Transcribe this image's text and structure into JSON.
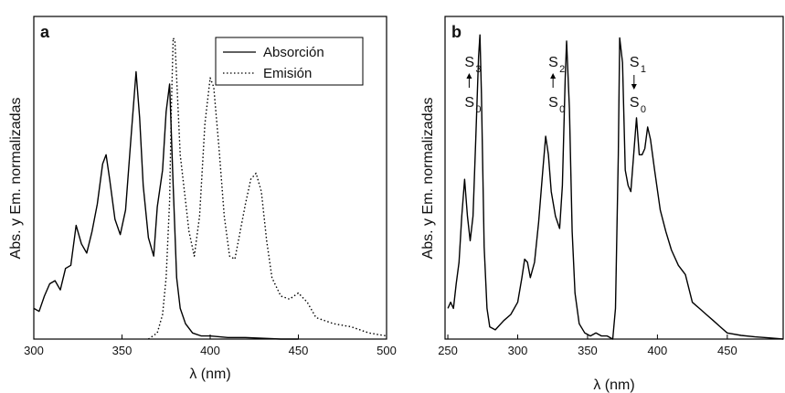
{
  "chart_data": [
    {
      "type": "line",
      "panel": "a",
      "xlabel": "λ (nm)",
      "ylabel": "Abs. y Em. normalizadas",
      "xlim": [
        300,
        500
      ],
      "xticks": [
        300,
        350,
        400,
        450,
        500
      ],
      "ylim": [
        0,
        1.05
      ],
      "grid": false,
      "legend_position": "top-right",
      "series": [
        {
          "name": "Absorción",
          "style": "solid",
          "x": [
            300,
            303,
            306,
            309,
            312,
            315,
            318,
            321,
            324,
            327,
            330,
            333,
            336,
            339,
            341,
            343,
            346,
            349,
            352,
            355,
            358,
            360,
            362,
            365,
            368,
            370,
            373,
            375,
            377,
            379,
            381,
            383,
            386,
            390,
            395,
            400,
            410,
            420,
            440,
            450
          ],
          "y": [
            0.1,
            0.09,
            0.14,
            0.18,
            0.19,
            0.16,
            0.23,
            0.24,
            0.37,
            0.31,
            0.28,
            0.35,
            0.44,
            0.57,
            0.6,
            0.52,
            0.39,
            0.34,
            0.42,
            0.65,
            0.87,
            0.72,
            0.5,
            0.33,
            0.27,
            0.43,
            0.55,
            0.74,
            0.83,
            0.5,
            0.2,
            0.1,
            0.05,
            0.02,
            0.01,
            0.01,
            0.005,
            0.005,
            0.0,
            0.0
          ]
        },
        {
          "name": "Emisión",
          "style": "dotted",
          "x": [
            365,
            370,
            373,
            375,
            377,
            378,
            379,
            380,
            381,
            383,
            386,
            388,
            391,
            394,
            397,
            400,
            402,
            405,
            408,
            411,
            414,
            417,
            420,
            423,
            426,
            429,
            432,
            435,
            440,
            445,
            450,
            455,
            460,
            470,
            480,
            490,
            500
          ],
          "y": [
            0.0,
            0.02,
            0.08,
            0.2,
            0.45,
            0.75,
            0.98,
            0.97,
            0.85,
            0.6,
            0.45,
            0.35,
            0.27,
            0.4,
            0.7,
            0.85,
            0.82,
            0.62,
            0.4,
            0.27,
            0.26,
            0.35,
            0.44,
            0.52,
            0.54,
            0.48,
            0.32,
            0.2,
            0.14,
            0.13,
            0.15,
            0.12,
            0.07,
            0.05,
            0.04,
            0.02,
            0.01
          ]
        }
      ]
    },
    {
      "type": "line",
      "panel": "b",
      "xlabel": "λ (nm)",
      "ylabel": "Abs. y Em. normalizadas",
      "xlim": [
        248,
        490
      ],
      "xticks": [
        250,
        300,
        350,
        400,
        450
      ],
      "ylim": [
        0,
        1.05
      ],
      "grid": false,
      "annotations": [
        {
          "upper": "S",
          "upper_sub": "3",
          "lower": "S",
          "lower_sub": "0",
          "arrow": "up",
          "x": 262
        },
        {
          "upper": "S",
          "upper_sub": "2",
          "lower": "S",
          "lower_sub": "0",
          "arrow": "up",
          "x": 322
        },
        {
          "upper": "S",
          "upper_sub": "1",
          "lower": "S",
          "lower_sub": "0",
          "arrow": "down",
          "x": 380
        }
      ],
      "series": [
        {
          "style": "solid",
          "x": [
            250,
            252,
            254,
            256,
            258,
            260,
            262,
            264,
            266,
            268,
            270,
            272,
            273,
            274,
            276,
            278,
            280,
            284,
            290,
            295,
            300,
            303,
            305,
            307,
            309,
            312,
            315,
            318,
            320,
            322,
            324,
            327,
            330,
            332,
            334,
            335,
            337,
            339,
            341,
            344,
            348,
            352,
            356,
            360,
            364,
            368,
            370,
            372,
            373,
            375,
            377,
            379,
            381,
            383,
            385,
            387,
            389,
            391,
            393,
            395,
            398,
            402,
            406,
            410,
            415,
            420,
            425,
            430,
            435,
            440,
            445,
            450,
            460,
            470,
            480,
            490
          ],
          "y": [
            0.1,
            0.12,
            0.1,
            0.18,
            0.25,
            0.4,
            0.52,
            0.4,
            0.32,
            0.4,
            0.65,
            0.92,
            0.99,
            0.8,
            0.3,
            0.1,
            0.04,
            0.03,
            0.06,
            0.08,
            0.12,
            0.2,
            0.26,
            0.25,
            0.2,
            0.25,
            0.38,
            0.55,
            0.66,
            0.6,
            0.48,
            0.4,
            0.36,
            0.5,
            0.85,
            0.97,
            0.75,
            0.35,
            0.15,
            0.05,
            0.02,
            0.01,
            0.02,
            0.01,
            0.01,
            0.0,
            0.1,
            0.6,
            0.98,
            0.9,
            0.55,
            0.5,
            0.48,
            0.6,
            0.72,
            0.6,
            0.6,
            0.62,
            0.69,
            0.65,
            0.55,
            0.42,
            0.35,
            0.29,
            0.24,
            0.21,
            0.12,
            0.1,
            0.08,
            0.06,
            0.04,
            0.02,
            0.012,
            0.007,
            0.004,
            0.0
          ]
        }
      ]
    }
  ]
}
